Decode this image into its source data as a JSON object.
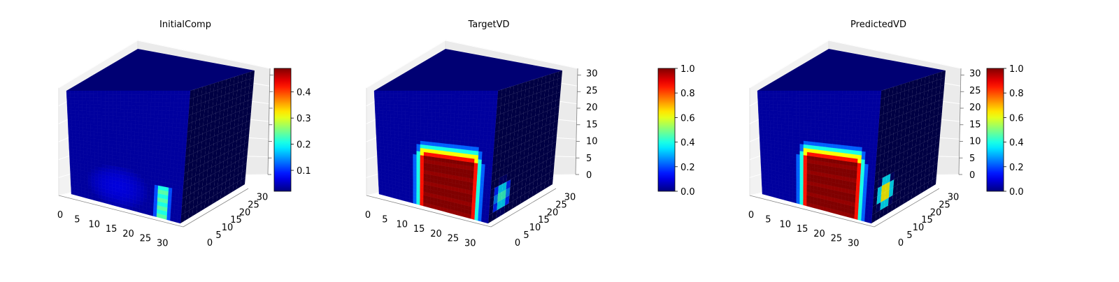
{
  "figure": {
    "description_type": "3D voxel volume renderings with jet colormap"
  },
  "chart_data": [
    {
      "type": "heatmap",
      "title": "InitialComp",
      "colormap": "jet",
      "x_ticks": [
        "0",
        "5",
        "10",
        "15",
        "20",
        "25",
        "30"
      ],
      "y_ticks": [
        "0",
        "5",
        "10",
        "15",
        "20",
        "25",
        "30"
      ],
      "z_ticks": [],
      "xlim": [
        0,
        32
      ],
      "ylim": [
        0,
        32
      ],
      "zlim": [
        0,
        32
      ],
      "colorbar": {
        "min": 0.02,
        "max": 0.49,
        "ticks": [
          "0.1",
          "0.2",
          "0.3",
          "0.4"
        ],
        "tick_values": [
          0.1,
          0.2,
          0.3,
          0.4
        ]
      },
      "front_face": {
        "background_value": 0.03,
        "features": [
          {
            "kind": "blob",
            "cx": 13,
            "cy": 5,
            "rx": 9,
            "ry": 6,
            "value": 0.09
          },
          {
            "kind": "column",
            "x0": 24,
            "x1": 28,
            "y0": 0,
            "y1": 7,
            "value": 0.46,
            "edge_value": 0.2
          }
        ]
      },
      "colorbar_visible": true
    },
    {
      "type": "heatmap",
      "title": "TargetVD",
      "colormap": "jet",
      "x_ticks": [
        "0",
        "5",
        "10",
        "15",
        "20",
        "25",
        "30"
      ],
      "y_ticks": [
        "0",
        "5",
        "10",
        "15",
        "20",
        "25",
        "30"
      ],
      "z_ticks": [
        "0",
        "5",
        "10",
        "15",
        "20",
        "25",
        "30"
      ],
      "xlim": [
        0,
        32
      ],
      "ylim": [
        0,
        32
      ],
      "zlim": [
        0,
        32
      ],
      "colorbar": {
        "min": 0.0,
        "max": 1.0,
        "ticks": [
          "0.0",
          "0.2",
          "0.4",
          "0.6",
          "0.8",
          "1.0"
        ],
        "tick_values": [
          0.0,
          0.2,
          0.4,
          0.6,
          0.8,
          1.0
        ]
      },
      "front_face": {
        "background_value": 0.03,
        "features": [
          {
            "kind": "u_region",
            "x0": 11,
            "x1": 29,
            "y0": 0,
            "y1": 17,
            "value": 1.0
          }
        ]
      },
      "side_face": {
        "features": [
          {
            "kind": "blob",
            "cy": 5,
            "cz": 4,
            "value": 0.45
          }
        ]
      },
      "colorbar_visible": true
    },
    {
      "type": "heatmap",
      "title": "PredictedVD",
      "colormap": "jet",
      "x_ticks": [
        "0",
        "5",
        "10",
        "15",
        "20",
        "25",
        "30"
      ],
      "y_ticks": [
        "0",
        "5",
        "10",
        "15",
        "20",
        "25",
        "30"
      ],
      "z_ticks": [
        "0",
        "5",
        "10",
        "15",
        "20",
        "25",
        "30"
      ],
      "xlim": [
        0,
        32
      ],
      "ylim": [
        0,
        32
      ],
      "zlim": [
        0,
        32
      ],
      "colorbar": {
        "min": 0.0,
        "max": 1.0,
        "ticks": [
          "0.0",
          "0.2",
          "0.4",
          "0.6",
          "0.8",
          "1.0"
        ],
        "tick_values": [
          0.0,
          0.2,
          0.4,
          0.6,
          0.8,
          1.0
        ]
      },
      "front_face": {
        "background_value": 0.03,
        "features": [
          {
            "kind": "u_region",
            "x0": 11,
            "x1": 29,
            "y0": 0,
            "y1": 17,
            "value": 1.0
          }
        ]
      },
      "side_face": {
        "features": [
          {
            "kind": "blob",
            "cy": 5,
            "cz": 5,
            "value": 0.7
          }
        ]
      },
      "colorbar_visible": true
    }
  ]
}
